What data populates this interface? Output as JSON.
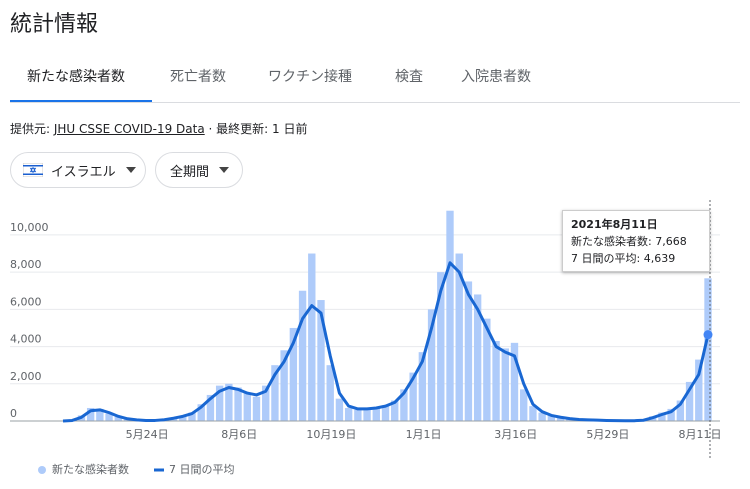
{
  "header": {
    "title": "統計情報"
  },
  "tabs": [
    "新たな感染者数",
    "死亡者数",
    "ワクチン接種",
    "検査",
    "入院患者数"
  ],
  "source": {
    "prefix": "提供元: ",
    "link": "JHU CSSE COVID-19 Data",
    "suffix": " · 最終更新: 1 日前"
  },
  "filters": [
    "イスラエル",
    "全期間"
  ],
  "tooltip": {
    "title": "2021年8月11日",
    "rows": [
      {
        "label": "新たな感染者数: ",
        "value": "7,668"
      },
      {
        "label": "7 日間の平均: ",
        "value": "4,639"
      }
    ]
  },
  "chart_data": {
    "type": "combo",
    "categories": [
      null,
      null,
      null,
      null,
      null,
      null,
      null,
      null,
      null,
      null,
      "5月24日",
      null,
      null,
      null,
      null,
      null,
      null,
      null,
      null,
      null,
      "8月6日",
      null,
      null,
      null,
      null,
      null,
      null,
      null,
      null,
      null,
      "10月19日",
      null,
      null,
      null,
      null,
      null,
      null,
      null,
      null,
      null,
      "1月1日",
      null,
      null,
      null,
      null,
      null,
      null,
      null,
      null,
      null,
      "3月16日",
      null,
      null,
      null,
      null,
      null,
      null,
      null,
      null,
      null,
      "5月29日",
      null,
      null,
      null,
      null,
      null,
      null,
      null,
      null,
      null,
      "8月11日"
    ],
    "series": [
      {
        "name": "新たな感染者数",
        "type": "bar",
        "color": "#aecbfa",
        "values": [
          0,
          60,
          300,
          700,
          650,
          400,
          220,
          100,
          50,
          25,
          20,
          80,
          170,
          280,
          450,
          900,
          1400,
          1900,
          2000,
          1800,
          1500,
          1300,
          1900,
          3000,
          3800,
          5000,
          7000,
          9000,
          6500,
          3000,
          1200,
          700,
          600,
          650,
          750,
          850,
          1100,
          1700,
          2600,
          3700,
          6000,
          8000,
          11300,
          9000,
          7500,
          6800,
          5500,
          4300,
          3900,
          4200,
          1700,
          800,
          450,
          280,
          180,
          120,
          70,
          50,
          40,
          25,
          15,
          10,
          12,
          50,
          250,
          450,
          650,
          1100,
          2100,
          3300,
          7668
        ]
      },
      {
        "name": "7 日間の平均",
        "type": "line",
        "color": "#1967d2",
        "values": [
          0,
          30,
          200,
          550,
          600,
          450,
          250,
          120,
          60,
          30,
          30,
          70,
          150,
          250,
          400,
          750,
          1200,
          1600,
          1800,
          1700,
          1500,
          1400,
          1600,
          2500,
          3200,
          4200,
          5500,
          6200,
          5800,
          3500,
          1500,
          800,
          650,
          650,
          700,
          800,
          1000,
          1500,
          2300,
          3200,
          5000,
          7000,
          8500,
          8000,
          6800,
          6000,
          5000,
          4000,
          3700,
          3500,
          2000,
          900,
          500,
          300,
          200,
          130,
          80,
          60,
          50,
          30,
          20,
          15,
          15,
          40,
          180,
          350,
          500,
          900,
          1700,
          2500,
          4639
        ]
      }
    ],
    "ylim": [
      0,
      11500
    ],
    "yticks": [
      0,
      {
        "value": 2000,
        "label": "2,000"
      },
      {
        "value": 4000,
        "label": "4,000"
      },
      {
        "value": 6000,
        "label": "6,000"
      },
      {
        "value": 8000,
        "label": "8,000"
      },
      {
        "value": 10000,
        "label": "10,000"
      }
    ],
    "grid": true
  }
}
